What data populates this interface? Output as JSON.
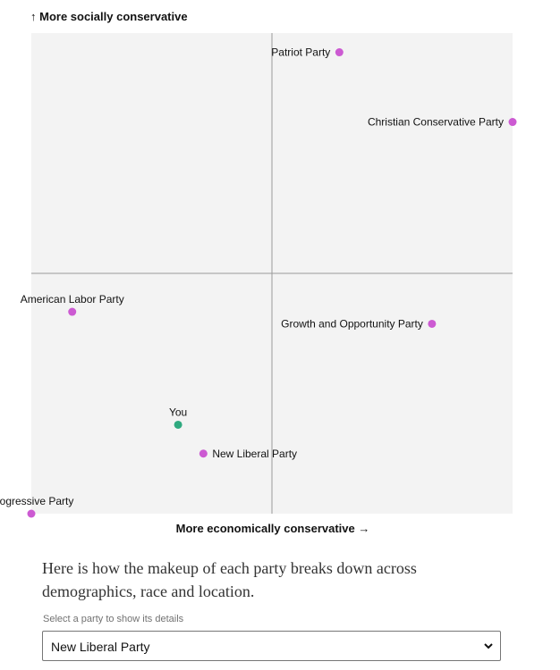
{
  "chart_data": {
    "type": "scatter",
    "ylabel": "↑ More socially conservative",
    "xlabel": "More economically conservative →",
    "xlim": [
      -1,
      1
    ],
    "ylim": [
      -1,
      1
    ],
    "quadrant_lines": [
      0,
      0
    ],
    "colors": {
      "party": "#cc5ad2",
      "you": "#2fa97f",
      "plot_bg": "#f3f3f3",
      "axis": "#9a9a9a"
    },
    "points": [
      {
        "name": "Patriot Party",
        "x": 0.28,
        "y": 0.92,
        "group": "party",
        "label_side": "left"
      },
      {
        "name": "Christian Conservative Party",
        "x": 1.0,
        "y": 0.63,
        "group": "party",
        "label_side": "left"
      },
      {
        "name": "American Labor Party",
        "x": -0.83,
        "y": -0.16,
        "group": "party",
        "label_side": "above"
      },
      {
        "name": "Growth and Opportunity Party",
        "x": 0.665,
        "y": -0.21,
        "group": "party",
        "label_side": "left"
      },
      {
        "name": "You",
        "x": -0.39,
        "y": -0.63,
        "group": "you",
        "label_side": "above"
      },
      {
        "name": "New Liberal Party",
        "x": -0.285,
        "y": -0.75,
        "group": "party",
        "label_side": "right"
      },
      {
        "name": "Progressive Party",
        "x": -1.0,
        "y": -1.0,
        "group": "party",
        "label_side": "above"
      }
    ]
  },
  "intro_text": "Here is how the makeup of each party breaks down across demographics, race and location.",
  "selector": {
    "label": "Select a party to show its details",
    "selected": "New Liberal Party"
  }
}
